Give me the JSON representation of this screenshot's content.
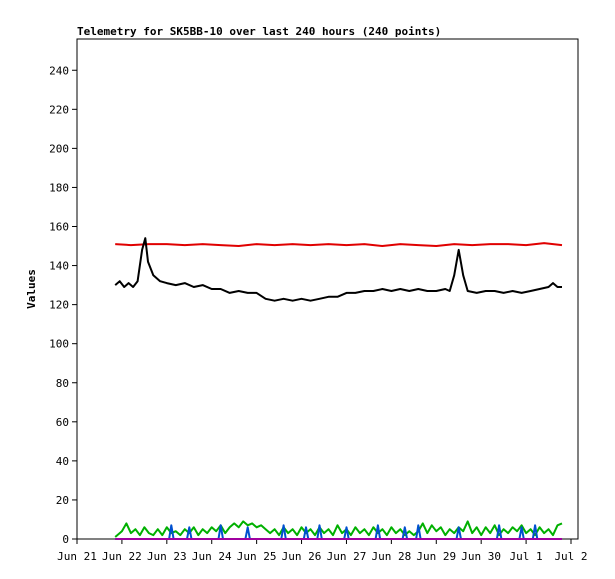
{
  "chart_data": {
    "type": "line",
    "title": "Telemetry for SK5BB-10 over last 240 hours (240 points)",
    "xlabel": "",
    "ylabel": "Values",
    "x_ticks": [
      "Jun 21",
      "Jun 22",
      "Jun 23",
      "Jun 24",
      "Jun 25",
      "Jun 26",
      "Jun 27",
      "Jun 28",
      "Jun 29",
      "Jun 30",
      "Jul 1",
      "Jul 2"
    ],
    "x_range_days": [
      0,
      11
    ],
    "y_ticks": [
      0,
      20,
      40,
      60,
      80,
      100,
      120,
      140,
      160,
      180,
      200,
      220,
      240
    ],
    "ylim": [
      0,
      256
    ],
    "grid": false,
    "legend": "none",
    "series": [
      {
        "color": "#e00000",
        "points": [
          [
            0.85,
            151
          ],
          [
            1.2,
            150.5
          ],
          [
            1.6,
            151
          ],
          [
            2.0,
            151
          ],
          [
            2.4,
            150.5
          ],
          [
            2.8,
            151
          ],
          [
            3.2,
            150.5
          ],
          [
            3.6,
            150
          ],
          [
            4.0,
            151
          ],
          [
            4.4,
            150.5
          ],
          [
            4.8,
            151
          ],
          [
            5.2,
            150.5
          ],
          [
            5.6,
            151
          ],
          [
            6.0,
            150.5
          ],
          [
            6.4,
            151
          ],
          [
            6.8,
            150
          ],
          [
            7.2,
            151
          ],
          [
            7.6,
            150.5
          ],
          [
            8.0,
            150
          ],
          [
            8.4,
            151
          ],
          [
            8.8,
            150.5
          ],
          [
            9.2,
            151
          ],
          [
            9.6,
            151
          ],
          [
            10.0,
            150.5
          ],
          [
            10.4,
            151.5
          ],
          [
            10.8,
            150.5
          ]
        ]
      },
      {
        "color": "#000000",
        "points": [
          [
            0.85,
            130
          ],
          [
            0.95,
            132
          ],
          [
            1.05,
            129
          ],
          [
            1.15,
            131
          ],
          [
            1.25,
            129
          ],
          [
            1.35,
            132
          ],
          [
            1.45,
            148
          ],
          [
            1.52,
            154
          ],
          [
            1.58,
            142
          ],
          [
            1.7,
            135
          ],
          [
            1.85,
            132
          ],
          [
            2.0,
            131
          ],
          [
            2.2,
            130
          ],
          [
            2.4,
            131
          ],
          [
            2.6,
            129
          ],
          [
            2.8,
            130
          ],
          [
            3.0,
            128
          ],
          [
            3.2,
            128
          ],
          [
            3.4,
            126
          ],
          [
            3.6,
            127
          ],
          [
            3.8,
            126
          ],
          [
            4.0,
            126
          ],
          [
            4.2,
            123
          ],
          [
            4.4,
            122
          ],
          [
            4.6,
            123
          ],
          [
            4.8,
            122
          ],
          [
            5.0,
            123
          ],
          [
            5.2,
            122
          ],
          [
            5.4,
            123
          ],
          [
            5.6,
            124
          ],
          [
            5.8,
            124
          ],
          [
            6.0,
            126
          ],
          [
            6.2,
            126
          ],
          [
            6.4,
            127
          ],
          [
            6.6,
            127
          ],
          [
            6.8,
            128
          ],
          [
            7.0,
            127
          ],
          [
            7.2,
            128
          ],
          [
            7.4,
            127
          ],
          [
            7.6,
            128
          ],
          [
            7.8,
            127
          ],
          [
            8.0,
            127
          ],
          [
            8.2,
            128
          ],
          [
            8.3,
            127
          ],
          [
            8.4,
            135
          ],
          [
            8.5,
            148
          ],
          [
            8.6,
            135
          ],
          [
            8.7,
            127
          ],
          [
            8.9,
            126
          ],
          [
            9.1,
            127
          ],
          [
            9.3,
            127
          ],
          [
            9.5,
            126
          ],
          [
            9.7,
            127
          ],
          [
            9.9,
            126
          ],
          [
            10.1,
            127
          ],
          [
            10.3,
            128
          ],
          [
            10.5,
            129
          ],
          [
            10.6,
            131
          ],
          [
            10.7,
            129
          ],
          [
            10.8,
            129
          ]
        ]
      },
      {
        "color": "#00b000",
        "points": [
          [
            0.85,
            1
          ],
          [
            1.0,
            4
          ],
          [
            1.1,
            8
          ],
          [
            1.2,
            3
          ],
          [
            1.3,
            5
          ],
          [
            1.4,
            2
          ],
          [
            1.5,
            6
          ],
          [
            1.6,
            3
          ],
          [
            1.7,
            2
          ],
          [
            1.8,
            5
          ],
          [
            1.9,
            2
          ],
          [
            2.0,
            6
          ],
          [
            2.1,
            3
          ],
          [
            2.2,
            4
          ],
          [
            2.3,
            2
          ],
          [
            2.4,
            5
          ],
          [
            2.5,
            3
          ],
          [
            2.6,
            6
          ],
          [
            2.7,
            2
          ],
          [
            2.8,
            5
          ],
          [
            2.9,
            3
          ],
          [
            3.0,
            6
          ],
          [
            3.1,
            4
          ],
          [
            3.2,
            7
          ],
          [
            3.3,
            3
          ],
          [
            3.4,
            6
          ],
          [
            3.5,
            8
          ],
          [
            3.6,
            6
          ],
          [
            3.7,
            9
          ],
          [
            3.8,
            7
          ],
          [
            3.9,
            8
          ],
          [
            4.0,
            6
          ],
          [
            4.1,
            7
          ],
          [
            4.2,
            5
          ],
          [
            4.3,
            3
          ],
          [
            4.4,
            5
          ],
          [
            4.5,
            2
          ],
          [
            4.6,
            6
          ],
          [
            4.7,
            3
          ],
          [
            4.8,
            5
          ],
          [
            4.9,
            2
          ],
          [
            5.0,
            6
          ],
          [
            5.1,
            3
          ],
          [
            5.2,
            5
          ],
          [
            5.3,
            2
          ],
          [
            5.4,
            6
          ],
          [
            5.5,
            3
          ],
          [
            5.6,
            5
          ],
          [
            5.7,
            2
          ],
          [
            5.8,
            7
          ],
          [
            5.9,
            3
          ],
          [
            6.0,
            5
          ],
          [
            6.1,
            2
          ],
          [
            6.2,
            6
          ],
          [
            6.3,
            3
          ],
          [
            6.4,
            5
          ],
          [
            6.5,
            2
          ],
          [
            6.6,
            6
          ],
          [
            6.7,
            3
          ],
          [
            6.8,
            5
          ],
          [
            6.9,
            2
          ],
          [
            7.0,
            6
          ],
          [
            7.1,
            3
          ],
          [
            7.2,
            5
          ],
          [
            7.3,
            2
          ],
          [
            7.4,
            4
          ],
          [
            7.5,
            2
          ],
          [
            7.6,
            4
          ],
          [
            7.7,
            8
          ],
          [
            7.8,
            3
          ],
          [
            7.9,
            7
          ],
          [
            8.0,
            4
          ],
          [
            8.1,
            6
          ],
          [
            8.2,
            2
          ],
          [
            8.3,
            5
          ],
          [
            8.4,
            3
          ],
          [
            8.5,
            6
          ],
          [
            8.6,
            4
          ],
          [
            8.7,
            9
          ],
          [
            8.8,
            3
          ],
          [
            8.9,
            6
          ],
          [
            9.0,
            2
          ],
          [
            9.1,
            6
          ],
          [
            9.2,
            3
          ],
          [
            9.3,
            7
          ],
          [
            9.4,
            2
          ],
          [
            9.5,
            5
          ],
          [
            9.6,
            3
          ],
          [
            9.7,
            6
          ],
          [
            9.8,
            4
          ],
          [
            9.9,
            7
          ],
          [
            10.0,
            3
          ],
          [
            10.1,
            5
          ],
          [
            10.2,
            2
          ],
          [
            10.3,
            6
          ],
          [
            10.4,
            3
          ],
          [
            10.5,
            5
          ],
          [
            10.6,
            2
          ],
          [
            10.7,
            7
          ],
          [
            10.8,
            8
          ]
        ]
      },
      {
        "color": "#0050d0",
        "points": [
          [
            0.85,
            0
          ],
          [
            2.05,
            0
          ],
          [
            2.1,
            7
          ],
          [
            2.15,
            0
          ],
          [
            2.45,
            0
          ],
          [
            2.5,
            6
          ],
          [
            2.55,
            0
          ],
          [
            3.15,
            0
          ],
          [
            3.2,
            7
          ],
          [
            3.25,
            0
          ],
          [
            3.75,
            0
          ],
          [
            3.8,
            6
          ],
          [
            3.85,
            0
          ],
          [
            4.55,
            0
          ],
          [
            4.6,
            7
          ],
          [
            4.65,
            0
          ],
          [
            5.05,
            0
          ],
          [
            5.1,
            6
          ],
          [
            5.15,
            0
          ],
          [
            5.35,
            0
          ],
          [
            5.4,
            7
          ],
          [
            5.45,
            0
          ],
          [
            5.95,
            0
          ],
          [
            6.0,
            6
          ],
          [
            6.05,
            0
          ],
          [
            6.65,
            0
          ],
          [
            6.7,
            7
          ],
          [
            6.75,
            0
          ],
          [
            7.25,
            0
          ],
          [
            7.3,
            6
          ],
          [
            7.35,
            0
          ],
          [
            7.55,
            0
          ],
          [
            7.6,
            7
          ],
          [
            7.65,
            0
          ],
          [
            8.45,
            0
          ],
          [
            8.5,
            6
          ],
          [
            8.55,
            0
          ],
          [
            9.35,
            0
          ],
          [
            9.4,
            7
          ],
          [
            9.45,
            0
          ],
          [
            9.85,
            0
          ],
          [
            9.9,
            6
          ],
          [
            9.95,
            0
          ],
          [
            10.15,
            0
          ],
          [
            10.2,
            7
          ],
          [
            10.25,
            0
          ],
          [
            10.8,
            0
          ]
        ]
      },
      {
        "color": "#a000a0",
        "points": [
          [
            0.85,
            0
          ],
          [
            10.8,
            0
          ]
        ]
      }
    ]
  }
}
